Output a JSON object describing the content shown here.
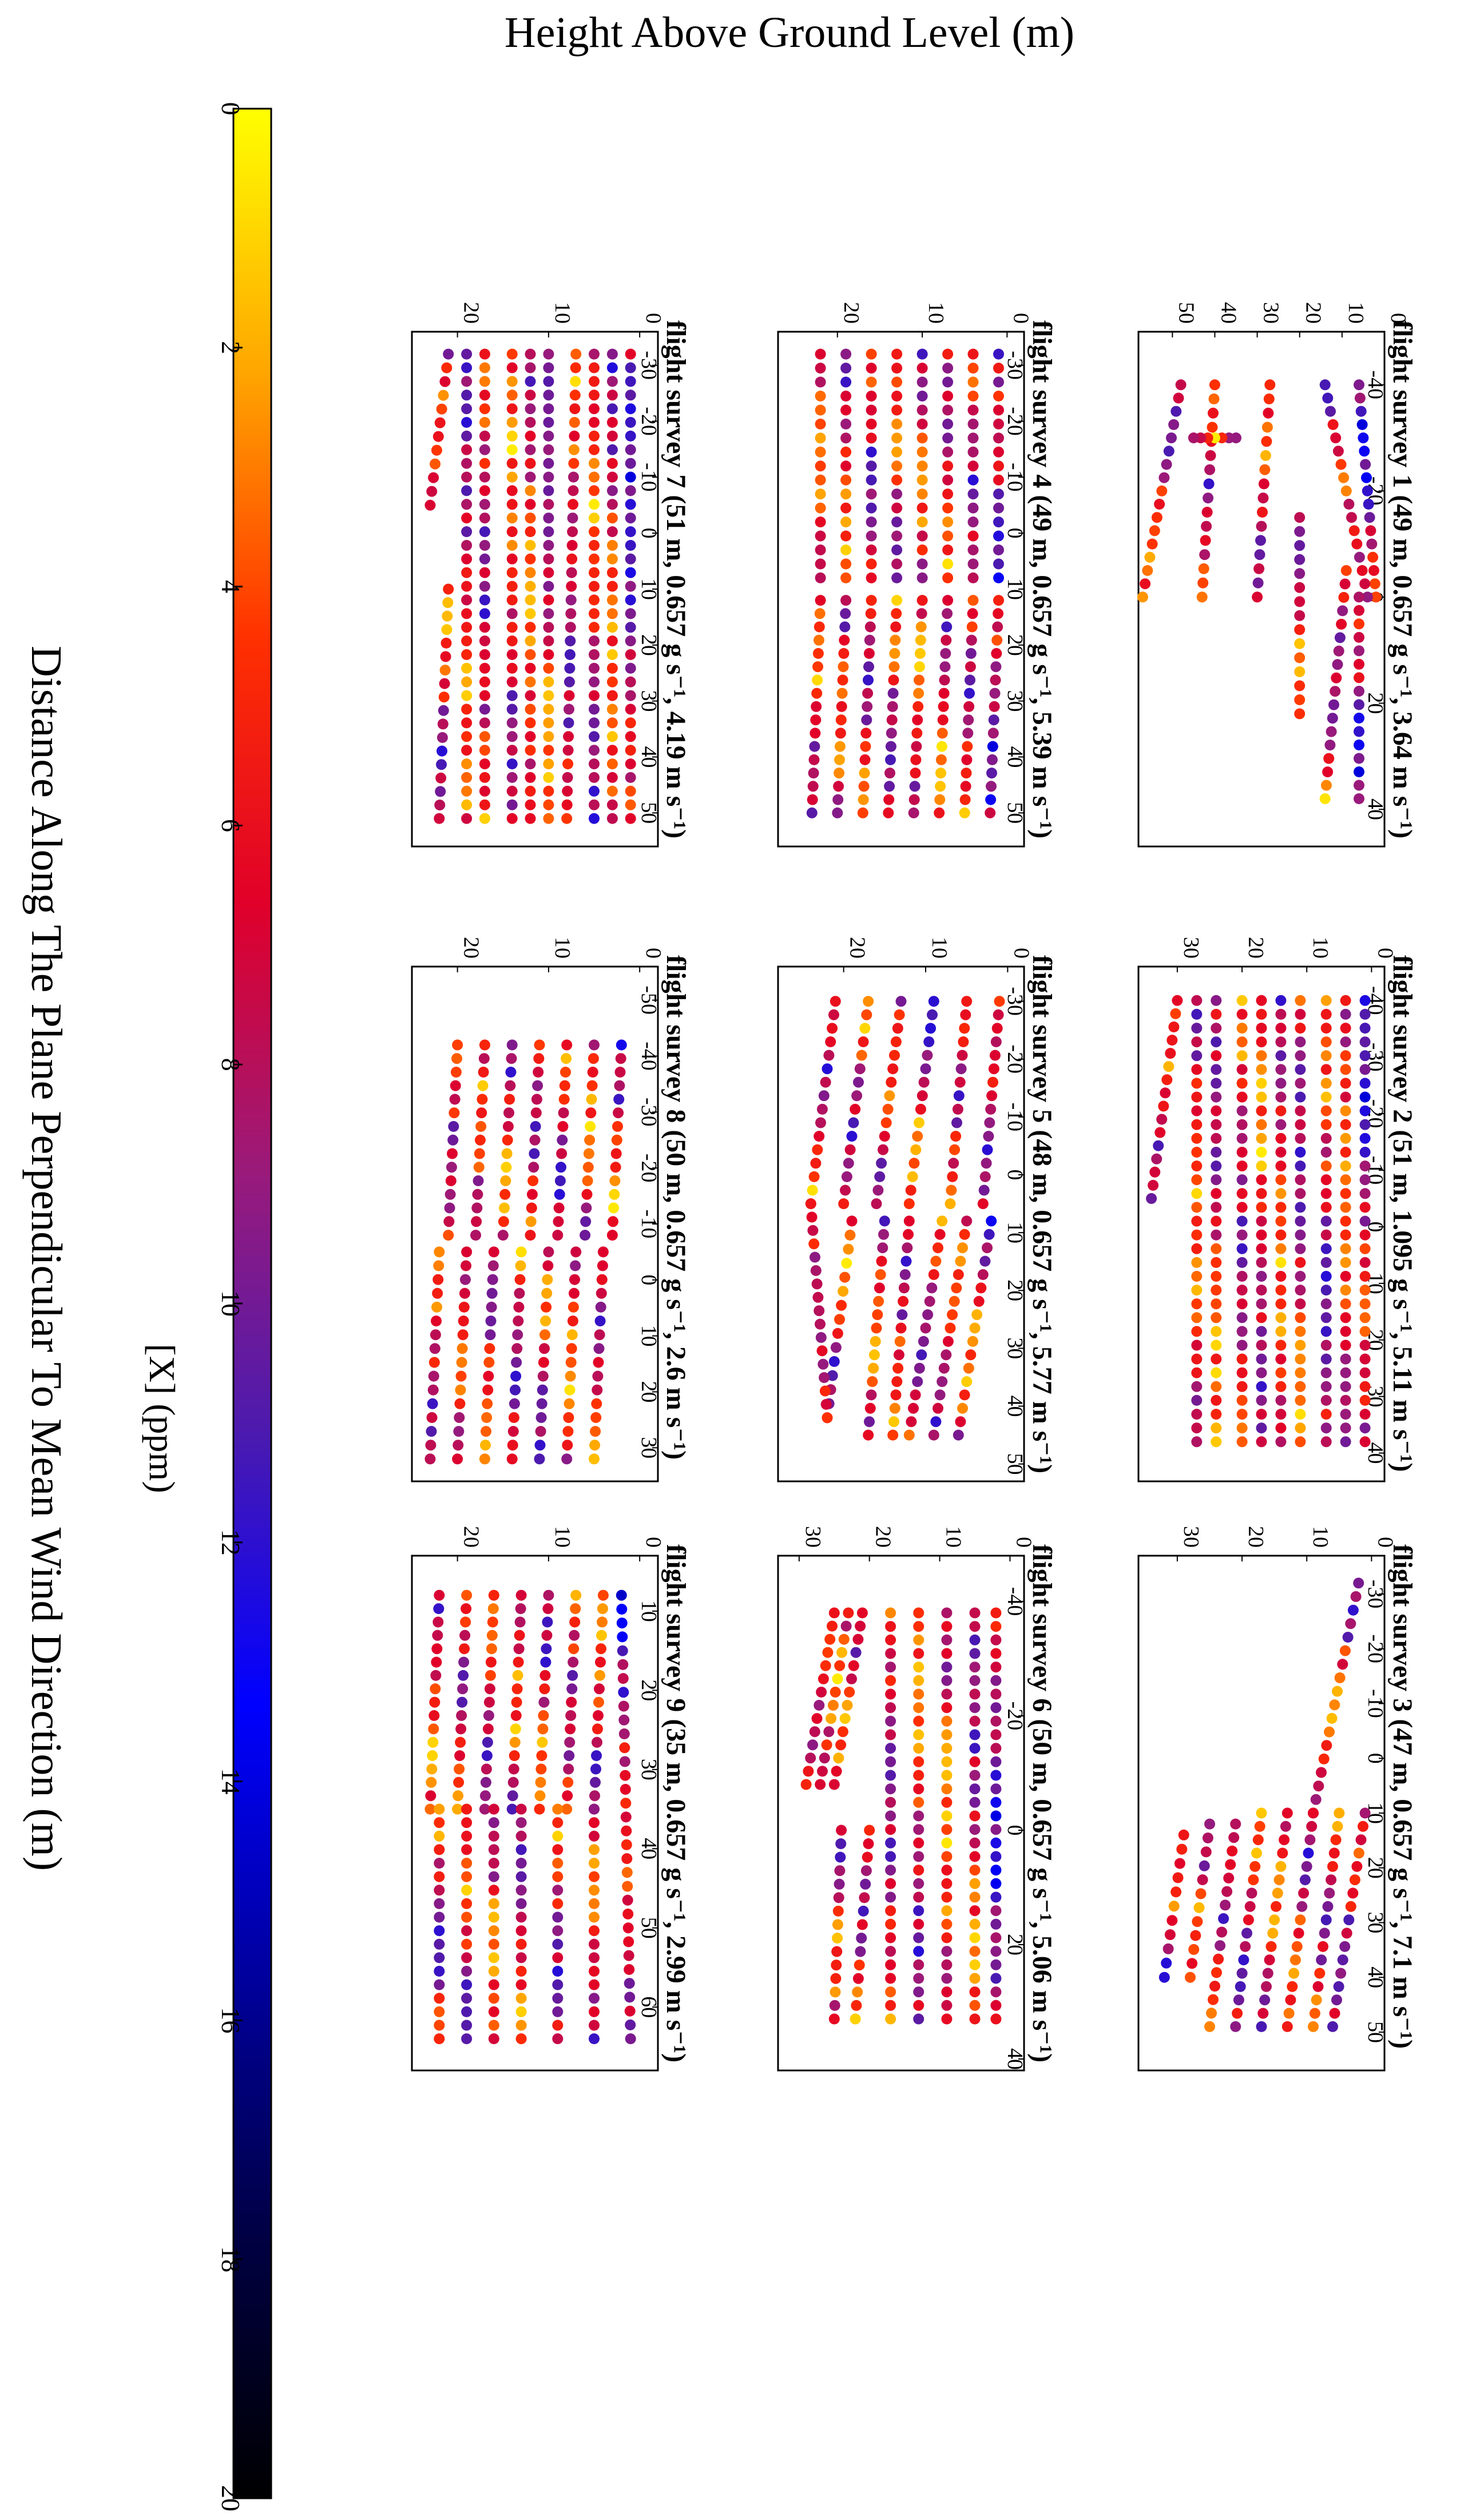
{
  "figure": {
    "top_label": "Height Above Ground Level (m)",
    "bottom_label": "Distance Along The Plane Perpendicular To Mean Wind Direction (m)"
  },
  "colorbar": {
    "label": "[X] (ppm)",
    "min": 0,
    "max": 20,
    "ticks": [
      "0",
      "2",
      "4",
      "6",
      "8",
      "10",
      "12",
      "14",
      "16",
      "18",
      "20"
    ],
    "colormap": [
      "#ffff00",
      "#ffa500",
      "#ff3000",
      "#e0002a",
      "#9a1a7a",
      "#4a1ab0",
      "#0000ff",
      "#0000a0",
      "#000044",
      "#000000"
    ]
  },
  "chart_data": [
    {
      "type": "scatter",
      "title": "flight survey 1 (49 m, 0.657 g s⁻¹, 3.64 m s⁻¹)",
      "x_ticks": [
        "-40",
        "-20",
        "0",
        "20",
        "40"
      ],
      "y_ticks": [
        "0",
        "10",
        "20",
        "30",
        "40",
        "50"
      ],
      "xlim": [
        -50,
        47
      ],
      "ylim": [
        0,
        58
      ],
      "passes": [
        [
          -40,
          6,
          0,
          2
        ],
        [
          -40,
          14,
          0,
          4
        ],
        [
          -40,
          27,
          0,
          30
        ],
        [
          -40,
          40,
          0,
          43
        ],
        [
          -40,
          48,
          0,
          57
        ],
        [
          -30,
          35,
          -30,
          45
        ],
        [
          0,
          6,
          38,
          6
        ],
        [
          -5,
          9,
          38,
          14
        ],
        [
          -15,
          20,
          22,
          20
        ]
      ]
    },
    {
      "type": "scatter",
      "title": "flight survey 2 (51 m, 1.095 g s⁻¹, 5.11 m s⁻¹)",
      "x_ticks": [
        "-40",
        "-30",
        "-20",
        "-10",
        "0",
        "10",
        "20",
        "30",
        "40"
      ],
      "y_ticks": [
        "0",
        "10",
        "20",
        "30"
      ],
      "xlim": [
        -46,
        45
      ],
      "ylim": [
        -2,
        36
      ],
      "passes": [
        [
          -40,
          1,
          38,
          1
        ],
        [
          -40,
          4,
          38,
          4
        ],
        [
          -40,
          7,
          38,
          7
        ],
        [
          -40,
          11,
          38,
          11
        ],
        [
          -40,
          14,
          38,
          14
        ],
        [
          -40,
          17,
          38,
          17
        ],
        [
          -40,
          20,
          38,
          20
        ],
        [
          -40,
          24,
          38,
          24
        ],
        [
          -40,
          27,
          38,
          27
        ],
        [
          -40,
          30,
          -5,
          34
        ]
      ]
    },
    {
      "type": "scatter",
      "title": "flight survey 3 (47 m, 0.657 g s⁻¹, 7.1 m s⁻¹)",
      "x_ticks": [
        "-30",
        "-20",
        "-10",
        "0",
        "10",
        "20",
        "30",
        "40",
        "50"
      ],
      "y_ticks": [
        "0",
        "10",
        "20",
        "30"
      ],
      "xlim": [
        -37,
        57
      ],
      "ylim": [
        -2,
        36
      ],
      "passes": [
        [
          -32,
          2,
          10,
          9
        ],
        [
          10,
          1,
          49,
          6
        ],
        [
          10,
          5,
          49,
          9
        ],
        [
          10,
          9,
          49,
          13
        ],
        [
          10,
          13,
          49,
          17
        ],
        [
          10,
          17,
          49,
          21
        ],
        [
          12,
          21,
          49,
          25
        ],
        [
          12,
          25,
          40,
          28
        ],
        [
          14,
          29,
          40,
          32
        ]
      ]
    },
    {
      "type": "scatter",
      "title": "flight survey 4 (49 m, 0.657 g s⁻¹, 5.39 m s⁻¹)",
      "x_ticks": [
        "-30",
        "-20",
        "-10",
        "0",
        "10",
        "20",
        "30",
        "40",
        "50"
      ],
      "y_ticks": [
        "0",
        "10",
        "20"
      ],
      "xlim": [
        -36,
        56
      ],
      "ylim": [
        -2,
        27
      ],
      "passes": [
        [
          -32,
          1,
          8,
          1
        ],
        [
          -32,
          4,
          8,
          4
        ],
        [
          -32,
          7,
          8,
          7
        ],
        [
          -32,
          10,
          8,
          10
        ],
        [
          -32,
          13,
          8,
          13
        ],
        [
          -32,
          16,
          8,
          16
        ],
        [
          -32,
          19,
          8,
          19
        ],
        [
          -32,
          22,
          8,
          22
        ],
        [
          12,
          1,
          50,
          2
        ],
        [
          12,
          4,
          50,
          5
        ],
        [
          12,
          7,
          50,
          8
        ],
        [
          12,
          10,
          50,
          11
        ],
        [
          12,
          13,
          50,
          14
        ],
        [
          12,
          16,
          50,
          17
        ],
        [
          12,
          19,
          50,
          20
        ],
        [
          12,
          22,
          50,
          23
        ]
      ]
    },
    {
      "type": "scatter",
      "title": "flight survey 5 (48 m, 0.657 g s⁻¹, 5.77 m s⁻¹)",
      "x_ticks": [
        "-30",
        "-20",
        "-10",
        "0",
        "10",
        "20",
        "30",
        "40",
        "50"
      ],
      "y_ticks": [
        "0",
        "10",
        "20"
      ],
      "xlim": [
        -36,
        53
      ],
      "ylim": [
        -2,
        28
      ],
      "passes": [
        [
          -30,
          1,
          5,
          3
        ],
        [
          -30,
          5,
          5,
          7
        ],
        [
          -30,
          9,
          5,
          12
        ],
        [
          -30,
          13,
          5,
          16
        ],
        [
          -30,
          17,
          5,
          20
        ],
        [
          -30,
          21,
          5,
          24
        ],
        [
          8,
          2,
          45,
          6
        ],
        [
          8,
          5,
          45,
          9
        ],
        [
          8,
          8,
          45,
          12
        ],
        [
          8,
          12,
          45,
          14
        ],
        [
          8,
          15,
          45,
          17
        ],
        [
          8,
          19,
          42,
          22
        ],
        [
          42,
          22,
          5,
          24
        ]
      ]
    },
    {
      "type": "scatter",
      "title": "flight survey 6 (50 m, 0.657 g s⁻¹, 5.06 m s⁻¹)",
      "x_ticks": [
        "-40",
        "-20",
        "0",
        "20",
        "40"
      ],
      "y_ticks": [
        "0",
        "10",
        "20",
        "30"
      ],
      "xlim": [
        -48,
        42
      ],
      "ylim": [
        -2,
        33
      ],
      "passes": [
        [
          -38,
          2,
          33,
          2
        ],
        [
          -38,
          5,
          33,
          5
        ],
        [
          -38,
          9,
          33,
          9
        ],
        [
          -38,
          13,
          33,
          13
        ],
        [
          -38,
          17,
          33,
          17
        ],
        [
          -38,
          21,
          -8,
          25
        ],
        [
          -38,
          23,
          -8,
          27
        ],
        [
          -38,
          25,
          -8,
          29
        ],
        [
          0,
          20,
          33,
          22
        ],
        [
          0,
          24,
          33,
          25
        ]
      ]
    },
    {
      "type": "scatter",
      "title": "flight survey 7 (51 m, 0.657 g s⁻¹, 4.19 m s⁻¹)",
      "x_ticks": [
        "-30",
        "-20",
        "-10",
        "0",
        "10",
        "20",
        "30",
        "40",
        "50"
      ],
      "y_ticks": [
        "0",
        "10",
        "20"
      ],
      "xlim": [
        -36,
        56
      ],
      "ylim": [
        -2,
        25
      ],
      "passes": [
        [
          -32,
          1,
          51,
          1
        ],
        [
          -32,
          3,
          51,
          3
        ],
        [
          -32,
          5,
          51,
          5
        ],
        [
          -32,
          7,
          51,
          8
        ],
        [
          -32,
          10,
          51,
          10
        ],
        [
          -32,
          12,
          51,
          12
        ],
        [
          -32,
          14,
          51,
          14
        ],
        [
          -32,
          17,
          51,
          17
        ],
        [
          -32,
          19,
          51,
          19
        ],
        [
          -32,
          21,
          -5,
          23
        ],
        [
          10,
          21,
          51,
          22
        ]
      ]
    },
    {
      "type": "scatter",
      "title": "flight survey 8 (50 m, 0.657 g s⁻¹, 2.6 m s⁻¹)",
      "x_ticks": [
        "-50",
        "-40",
        "-30",
        "-20",
        "-10",
        "0",
        "10",
        "20",
        "30"
      ],
      "y_ticks": [
        "0",
        "10",
        "20"
      ],
      "xlim": [
        -56,
        36
      ],
      "ylim": [
        -2,
        25
      ],
      "passes": [
        [
          -42,
          2,
          -8,
          3
        ],
        [
          -42,
          5,
          -8,
          6
        ],
        [
          -42,
          8,
          -8,
          9
        ],
        [
          -42,
          11,
          -8,
          12
        ],
        [
          -42,
          14,
          -8,
          15
        ],
        [
          -42,
          17,
          -8,
          18
        ],
        [
          -42,
          20,
          -8,
          21
        ],
        [
          -5,
          4,
          32,
          5
        ],
        [
          -5,
          7,
          32,
          8
        ],
        [
          -5,
          10,
          32,
          11
        ],
        [
          -5,
          13,
          32,
          14
        ],
        [
          -5,
          16,
          32,
          17
        ],
        [
          -5,
          19,
          32,
          20
        ],
        [
          -5,
          22,
          32,
          23
        ]
      ]
    },
    {
      "type": "scatter",
      "title": "flight survey 9 (35 m, 0.657 g s⁻¹, 2.99 m s⁻¹)",
      "x_ticks": [
        "10",
        "20",
        "30",
        "40",
        "50",
        "60"
      ],
      "y_ticks": [
        "0",
        "10",
        "20"
      ],
      "xlim": [
        3,
        68
      ],
      "ylim": [
        -2,
        25
      ],
      "passes": [
        [
          8,
          2,
          64,
          1
        ],
        [
          8,
          4,
          35,
          5
        ],
        [
          8,
          7,
          35,
          8
        ],
        [
          8,
          10,
          35,
          11
        ],
        [
          8,
          13,
          35,
          14
        ],
        [
          8,
          16,
          35,
          17
        ],
        [
          8,
          19,
          35,
          20
        ],
        [
          8,
          22,
          35,
          23
        ],
        [
          35,
          5,
          64,
          5
        ],
        [
          35,
          9,
          64,
          9
        ],
        [
          35,
          13,
          64,
          13
        ],
        [
          35,
          16,
          64,
          16
        ],
        [
          35,
          19,
          64,
          19
        ],
        [
          35,
          22,
          64,
          22
        ]
      ]
    }
  ]
}
